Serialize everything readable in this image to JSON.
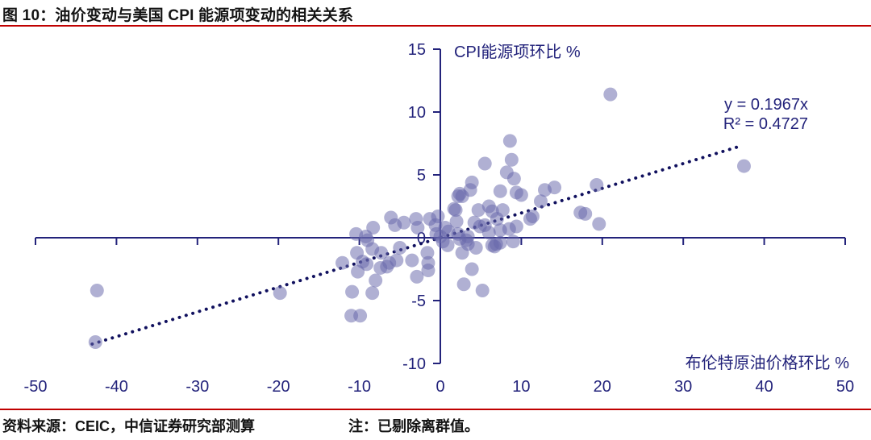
{
  "title": "图 10：油价变动与美国 CPI 能源项变动的相关关系",
  "source_note": "资料来源：CEIC，中信证券研究部测算",
  "note": "注：已剔除离群值。",
  "colors": {
    "accent_red": "#c00000",
    "axis_navy": "#23237b",
    "trend_navy": "#10105e",
    "point_fill": "#6868ab",
    "point_opacity": 0.52,
    "title_text": "#141414"
  },
  "chart_data": {
    "type": "scatter",
    "y_axis_label": "CPI能源项环比 %",
    "x_axis_label": "布伦特原油价格环比 %",
    "equation": "y = 0.1967x",
    "r_squared": "R² = 0.4727",
    "xlim": [
      -50,
      50
    ],
    "ylim": [
      -10,
      15
    ],
    "x_ticks": [
      -50,
      -40,
      -30,
      -20,
      -10,
      0,
      10,
      20,
      30,
      40,
      50
    ],
    "y_ticks": [
      -10,
      -5,
      0,
      5,
      10,
      15
    ],
    "grid": false,
    "legend": "none",
    "trendline": {
      "slope": 0.1967,
      "intercept": 0,
      "x_start": -43,
      "x_end": 36.8,
      "style": "dotted"
    },
    "points": [
      [
        -42.4,
        -4.2
      ],
      [
        -42.6,
        -8.3
      ],
      [
        -19.8,
        -4.4
      ],
      [
        -12.1,
        -2.0
      ],
      [
        -11.0,
        -6.2
      ],
      [
        -10.9,
        -4.3
      ],
      [
        -10.4,
        0.3
      ],
      [
        -10.3,
        -1.2
      ],
      [
        -10.2,
        -2.7
      ],
      [
        -9.9,
        -6.2
      ],
      [
        -9.6,
        -1.9
      ],
      [
        -9.2,
        0.1
      ],
      [
        -9.1,
        -2.1
      ],
      [
        -9.0,
        -0.2
      ],
      [
        -8.4,
        -4.4
      ],
      [
        -8.4,
        -0.9
      ],
      [
        -8.3,
        0.8
      ],
      [
        -8.0,
        -3.4
      ],
      [
        -7.4,
        -2.4
      ],
      [
        -7.3,
        -1.2
      ],
      [
        -6.6,
        -2.3
      ],
      [
        -6.3,
        -2.0
      ],
      [
        -6.1,
        1.6
      ],
      [
        -5.6,
        1.0
      ],
      [
        -5.4,
        -1.8
      ],
      [
        -5.0,
        -0.8
      ],
      [
        -4.5,
        1.2
      ],
      [
        -3.5,
        -1.8
      ],
      [
        -3.0,
        1.5
      ],
      [
        -2.9,
        -3.1
      ],
      [
        -2.8,
        0.8
      ],
      [
        -1.6,
        -1.2
      ],
      [
        -1.5,
        -2.0
      ],
      [
        -1.5,
        -2.6
      ],
      [
        -1.3,
        1.5
      ],
      [
        -0.6,
        1.0
      ],
      [
        -0.5,
        0.3
      ],
      [
        -0.3,
        1.7
      ],
      [
        0.0,
        0.1
      ],
      [
        0.3,
        -0.3
      ],
      [
        0.6,
        0.8
      ],
      [
        0.9,
        -0.6
      ],
      [
        1.0,
        0.5
      ],
      [
        1.7,
        2.3
      ],
      [
        1.9,
        2.2
      ],
      [
        2.0,
        1.3
      ],
      [
        2.2,
        3.3
      ],
      [
        2.2,
        0.3
      ],
      [
        2.4,
        3.5
      ],
      [
        2.4,
        -0.1
      ],
      [
        2.7,
        3.3
      ],
      [
        2.7,
        -1.2
      ],
      [
        2.9,
        -3.7
      ],
      [
        3.2,
        -0.2
      ],
      [
        3.4,
        0.1
      ],
      [
        3.4,
        -0.5
      ],
      [
        3.7,
        3.8
      ],
      [
        3.9,
        4.4
      ],
      [
        3.9,
        -2.5
      ],
      [
        4.2,
        1.2
      ],
      [
        4.4,
        -0.8
      ],
      [
        4.7,
        2.2
      ],
      [
        4.9,
        0.9
      ],
      [
        5.2,
        -4.2
      ],
      [
        5.5,
        5.9
      ],
      [
        5.5,
        1.0
      ],
      [
        6.0,
        2.5
      ],
      [
        6.0,
        0.4
      ],
      [
        6.4,
        2.1
      ],
      [
        6.4,
        -0.6
      ],
      [
        6.7,
        -0.7
      ],
      [
        6.9,
        -0.5
      ],
      [
        7.0,
        1.5
      ],
      [
        7.4,
        3.7
      ],
      [
        7.4,
        0.6
      ],
      [
        7.4,
        -0.4
      ],
      [
        7.7,
        2.2
      ],
      [
        8.2,
        5.2
      ],
      [
        8.5,
        0.7
      ],
      [
        8.6,
        7.7
      ],
      [
        8.8,
        6.2
      ],
      [
        9.0,
        -0.3
      ],
      [
        9.1,
        4.7
      ],
      [
        9.4,
        3.6
      ],
      [
        9.4,
        0.9
      ],
      [
        10.0,
        3.4
      ],
      [
        11.1,
        1.5
      ],
      [
        11.4,
        1.7
      ],
      [
        12.4,
        2.9
      ],
      [
        12.9,
        3.8
      ],
      [
        14.1,
        4.0
      ],
      [
        17.3,
        2.0
      ],
      [
        17.9,
        1.9
      ],
      [
        19.3,
        4.2
      ],
      [
        19.6,
        1.1
      ],
      [
        21.0,
        11.4
      ],
      [
        37.5,
        5.7
      ]
    ]
  }
}
